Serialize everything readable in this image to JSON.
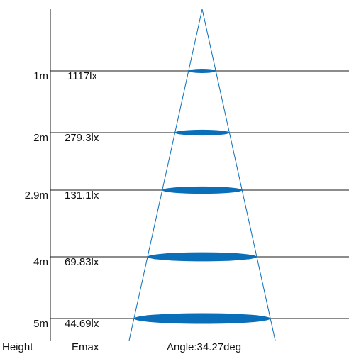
{
  "colors": {
    "beam": "#0a6eb8",
    "line": "#1a1a1a",
    "text": "#111111"
  },
  "levels": [
    {
      "height": "1m",
      "emax": "1117lx",
      "spot": 1.0
    },
    {
      "height": "2m",
      "emax": "279.3lx",
      "spot": 2.0
    },
    {
      "height": "2.9m",
      "emax": "131.1lx",
      "spot": 2.9
    },
    {
      "height": "4m",
      "emax": "69.83lx",
      "spot": 4.0
    },
    {
      "height": "5m",
      "emax": "44.69lx",
      "spot": 5.0
    }
  ],
  "footer": {
    "height_label": "Height",
    "emax_label": "Emax",
    "angle_label": "Angle:34.27deg"
  }
}
